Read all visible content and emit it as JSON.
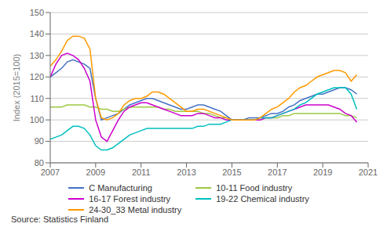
{
  "chart_data": {
    "type": "line",
    "ylabel": "Index (2015=100)",
    "annotations": [
      "Source: Statistics Finland"
    ],
    "xlim": [
      2007,
      2021
    ],
    "xticks": [
      2007,
      2009,
      2011,
      2013,
      2015,
      2017,
      2019,
      2021
    ],
    "ylim": [
      80,
      150
    ],
    "yticks": [
      80,
      90,
      100,
      110,
      120,
      130,
      140,
      150
    ],
    "grid": "y",
    "legend": "bottom",
    "x": [
      2007,
      2007.25,
      2007.5,
      2007.75,
      2008,
      2008.25,
      2008.5,
      2008.75,
      2009,
      2009.25,
      2009.5,
      2009.75,
      2010,
      2010.25,
      2010.5,
      2010.75,
      2011,
      2011.25,
      2011.5,
      2011.75,
      2012,
      2012.25,
      2012.5,
      2012.75,
      2013,
      2013.25,
      2013.5,
      2013.75,
      2014,
      2014.25,
      2014.5,
      2014.75,
      2015,
      2015.25,
      2015.5,
      2015.75,
      2016,
      2016.25,
      2016.5,
      2016.75,
      2017,
      2017.25,
      2017.5,
      2017.75,
      2018,
      2018.25,
      2018.5,
      2018.75,
      2019,
      2019.25,
      2019.5,
      2019.75,
      2020,
      2020.25,
      2020.5
    ],
    "series": [
      {
        "name": "C Manufacturing",
        "color": "#4472C4",
        "values": [
          120,
          122,
          124,
          127,
          128,
          127,
          126,
          124,
          110,
          100,
          101,
          102,
          103,
          105,
          107,
          108,
          109,
          110,
          110,
          109,
          108,
          107,
          106,
          105,
          105,
          106,
          107,
          107,
          106,
          105,
          104,
          102,
          100,
          100,
          100,
          101,
          101,
          101,
          102,
          103,
          103,
          104,
          106,
          107,
          109,
          110,
          111,
          112,
          112,
          113,
          114,
          115,
          115,
          114,
          112
        ]
      },
      {
        "name": "10-11 Food industry",
        "color": "#9DC843",
        "values": [
          106,
          106,
          106,
          107,
          107,
          107,
          107,
          106,
          106,
          105,
          105,
          104,
          104,
          105,
          106,
          106,
          106,
          106,
          106,
          106,
          105,
          105,
          104,
          104,
          104,
          104,
          104,
          103,
          103,
          102,
          101,
          101,
          100,
          100,
          100,
          100,
          100,
          100,
          101,
          101,
          101,
          102,
          102,
          103,
          103,
          103,
          103,
          103,
          103,
          103,
          103,
          103,
          102,
          102,
          101
        ]
      },
      {
        "name": "16-17 Forest industry",
        "color": "#CC00CC",
        "values": [
          120,
          126,
          130,
          131,
          130,
          128,
          124,
          118,
          100,
          92,
          90,
          95,
          100,
          104,
          106,
          107,
          108,
          108,
          107,
          106,
          105,
          104,
          103,
          102,
          102,
          102,
          103,
          103,
          102,
          101,
          101,
          100,
          100,
          100,
          100,
          100,
          100,
          100,
          101,
          101,
          102,
          103,
          104,
          105,
          106,
          107,
          107,
          107,
          107,
          107,
          106,
          105,
          103,
          102,
          99
        ]
      },
      {
        "name": "19-22 Chemical industry",
        "color": "#00BFBF",
        "values": [
          91,
          92,
          93,
          95,
          97,
          97,
          96,
          93,
          88,
          86,
          86,
          87,
          89,
          91,
          93,
          94,
          95,
          96,
          96,
          96,
          96,
          96,
          96,
          96,
          96,
          96,
          97,
          97,
          98,
          98,
          98,
          99,
          100,
          100,
          100,
          100,
          100,
          101,
          101,
          101,
          102,
          103,
          104,
          105,
          107,
          108,
          110,
          112,
          113,
          114,
          115,
          115,
          115,
          112,
          105
        ]
      },
      {
        "name": "24-30_33 Metal industry",
        "color": "#FF9900",
        "values": [
          125,
          128,
          132,
          137,
          139,
          139,
          138,
          133,
          110,
          101,
          100,
          101,
          103,
          107,
          109,
          110,
          110,
          111,
          113,
          113,
          112,
          110,
          108,
          106,
          104,
          104,
          105,
          105,
          104,
          103,
          102,
          101,
          100,
          100,
          100,
          100,
          100,
          101,
          103,
          105,
          106,
          108,
          110,
          113,
          115,
          116,
          118,
          120,
          121,
          122,
          123,
          123,
          122,
          118,
          121
        ]
      }
    ]
  }
}
